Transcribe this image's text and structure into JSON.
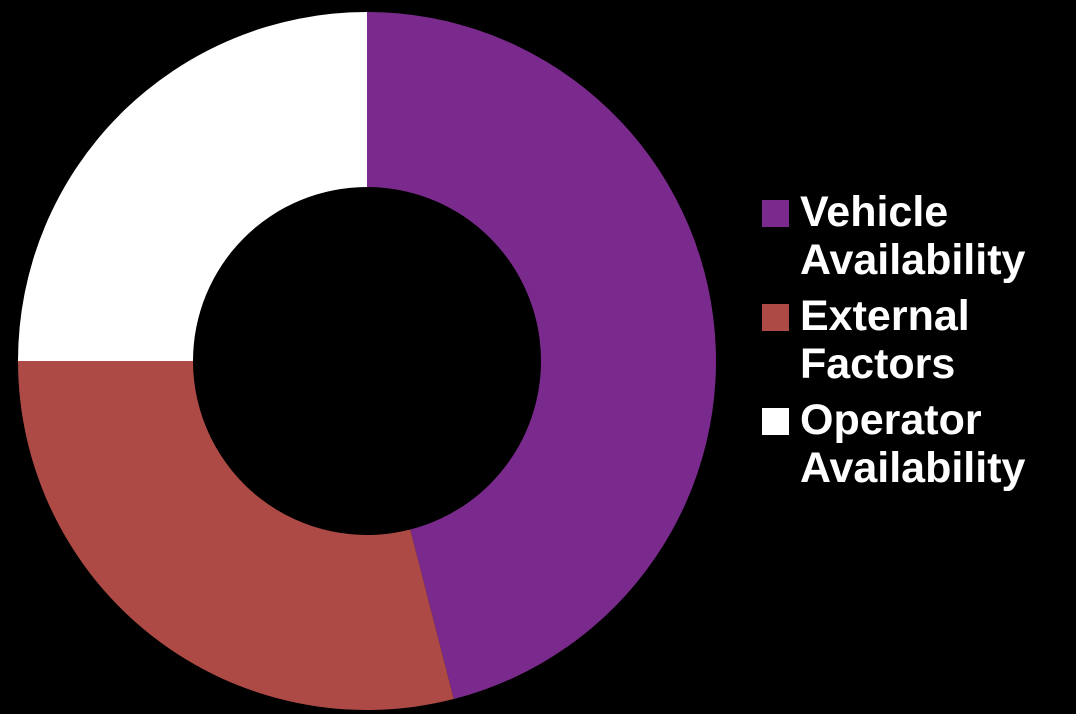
{
  "chart_data": {
    "type": "pie",
    "subtype": "doughnut",
    "title": "",
    "categories": [
      "Vehicle\nAvailability",
      "External\nFactors",
      "Operator\nAvailability"
    ],
    "values": [
      46,
      29,
      25
    ],
    "colors": [
      "#7A2A8C",
      "#AD4A45",
      "#FFFFFF"
    ],
    "legend_position": "right",
    "background": "#000000"
  }
}
